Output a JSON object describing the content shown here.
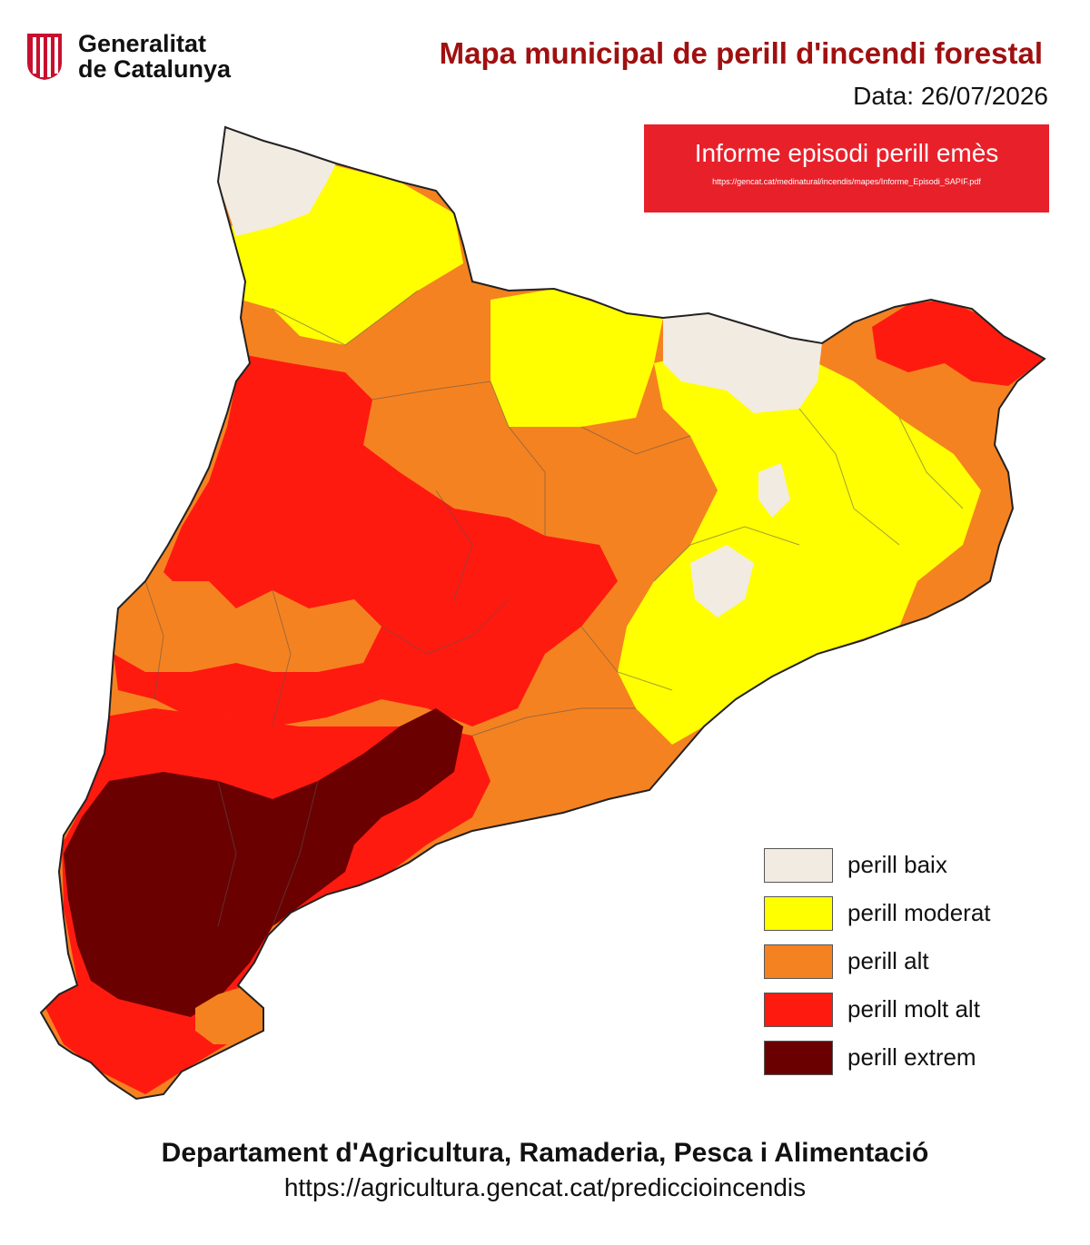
{
  "header": {
    "logo_line1": "Generalitat",
    "logo_line2": "de Catalunya",
    "title": "Mapa municipal de perill d'incendi forestal",
    "date": "Data: 26/07/2026"
  },
  "episode": {
    "title": "Informe episodi perill emès",
    "url": "https://gencat.cat/medinatural/incendis/mapes/Informe_Episodi_SAPIF.pdf"
  },
  "legend": [
    {
      "label": "perill baix",
      "color": "#f2ebe1"
    },
    {
      "label": "perill moderat",
      "color": "#ffff00"
    },
    {
      "label": "perill alt",
      "color": "#f58220"
    },
    {
      "label": "perill molt alt",
      "color": "#ff1a10"
    },
    {
      "label": "perill extrem",
      "color": "#6b0000"
    }
  ],
  "footer": {
    "department": "Departament d'Agricultura, Ramaderia, Pesca i Alimentació",
    "url": "https://agricultura.gencat.cat/prediccioincendis"
  },
  "colors": {
    "title": "#a01010",
    "episode_box": "#e8202a"
  }
}
